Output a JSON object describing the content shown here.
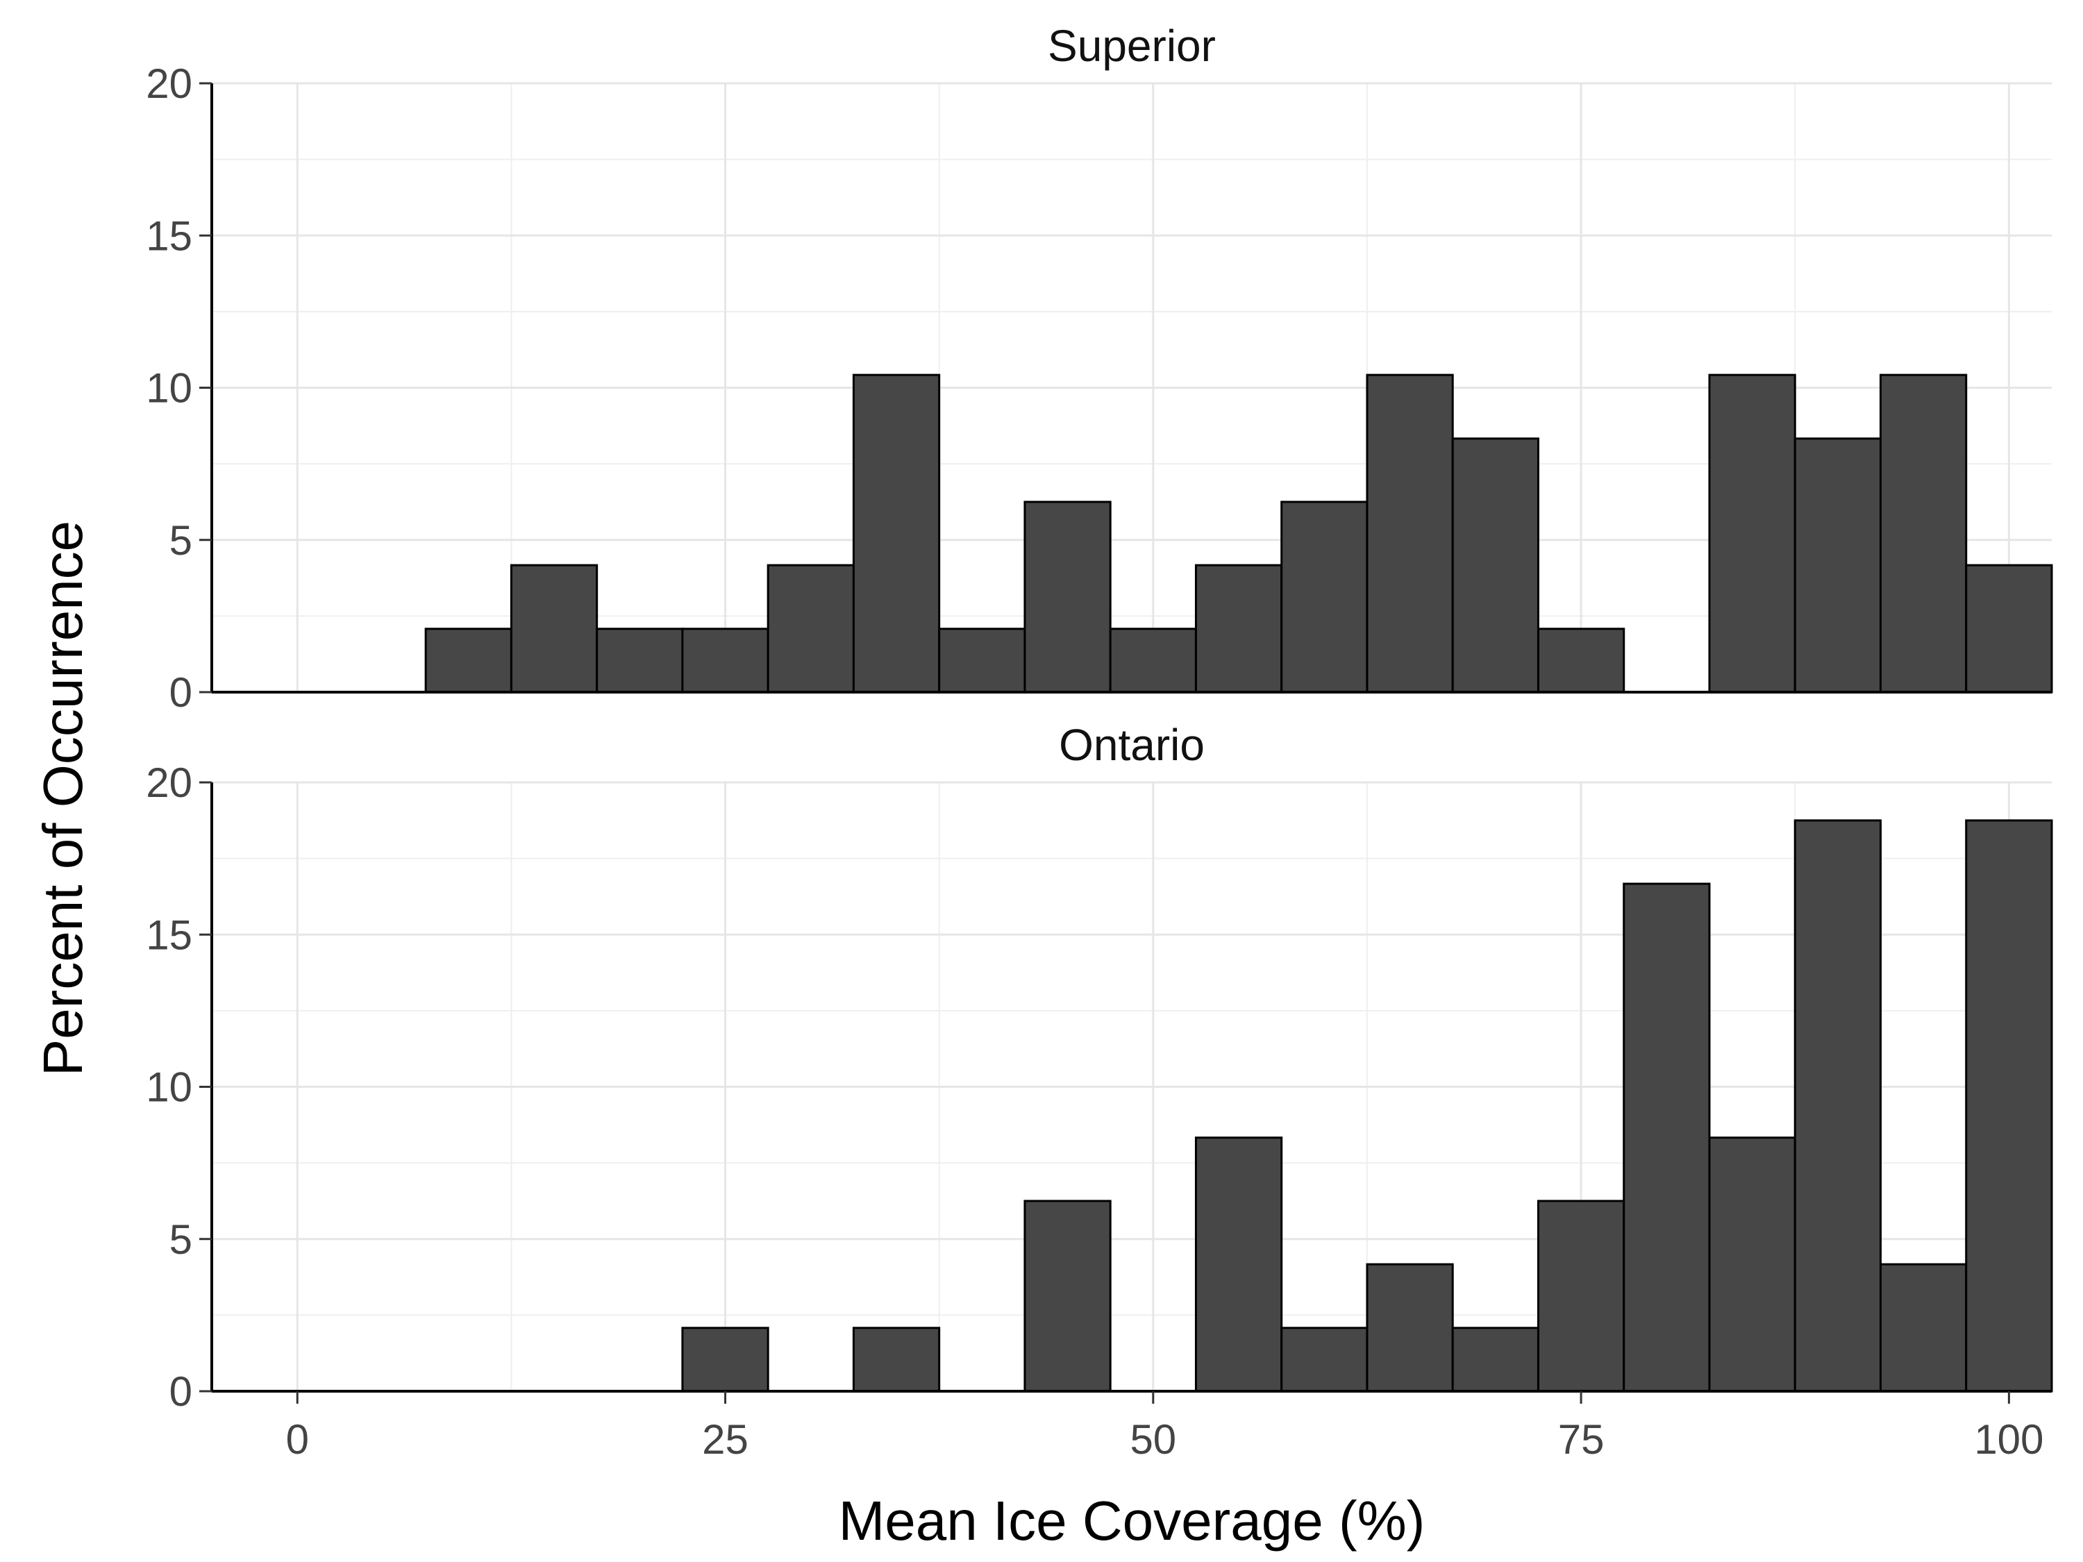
{
  "chart_data": {
    "type": "bar",
    "xlabel": "Mean Ice Coverage (%)",
    "ylabel": "Percent of Occurrence",
    "xlim": [
      -5,
      102.5
    ],
    "ylim": [
      0,
      20
    ],
    "x_ticks": [
      0,
      25,
      50,
      75,
      100
    ],
    "y_ticks": [
      0,
      5,
      10,
      15,
      20
    ],
    "bin_width": 5,
    "bin_centers": [
      10,
      15,
      20,
      25,
      30,
      35,
      40,
      45,
      50,
      55,
      60,
      65,
      70,
      75,
      80,
      85,
      90,
      95,
      100
    ],
    "grid": true,
    "bar_color": "#474747",
    "panels": [
      {
        "title": "Superior",
        "values": [
          2.08,
          4.17,
          2.08,
          2.08,
          4.17,
          10.42,
          2.08,
          6.25,
          2.08,
          4.17,
          6.25,
          10.42,
          8.33,
          2.08,
          0,
          10.42,
          8.33,
          10.42,
          4.17
        ]
      },
      {
        "title": "Ontario",
        "values": [
          0,
          0,
          0,
          2.08,
          0,
          2.08,
          0,
          6.25,
          0,
          8.33,
          2.08,
          4.17,
          2.08,
          6.25,
          16.67,
          8.33,
          18.75,
          4.17,
          18.75
        ]
      }
    ]
  }
}
